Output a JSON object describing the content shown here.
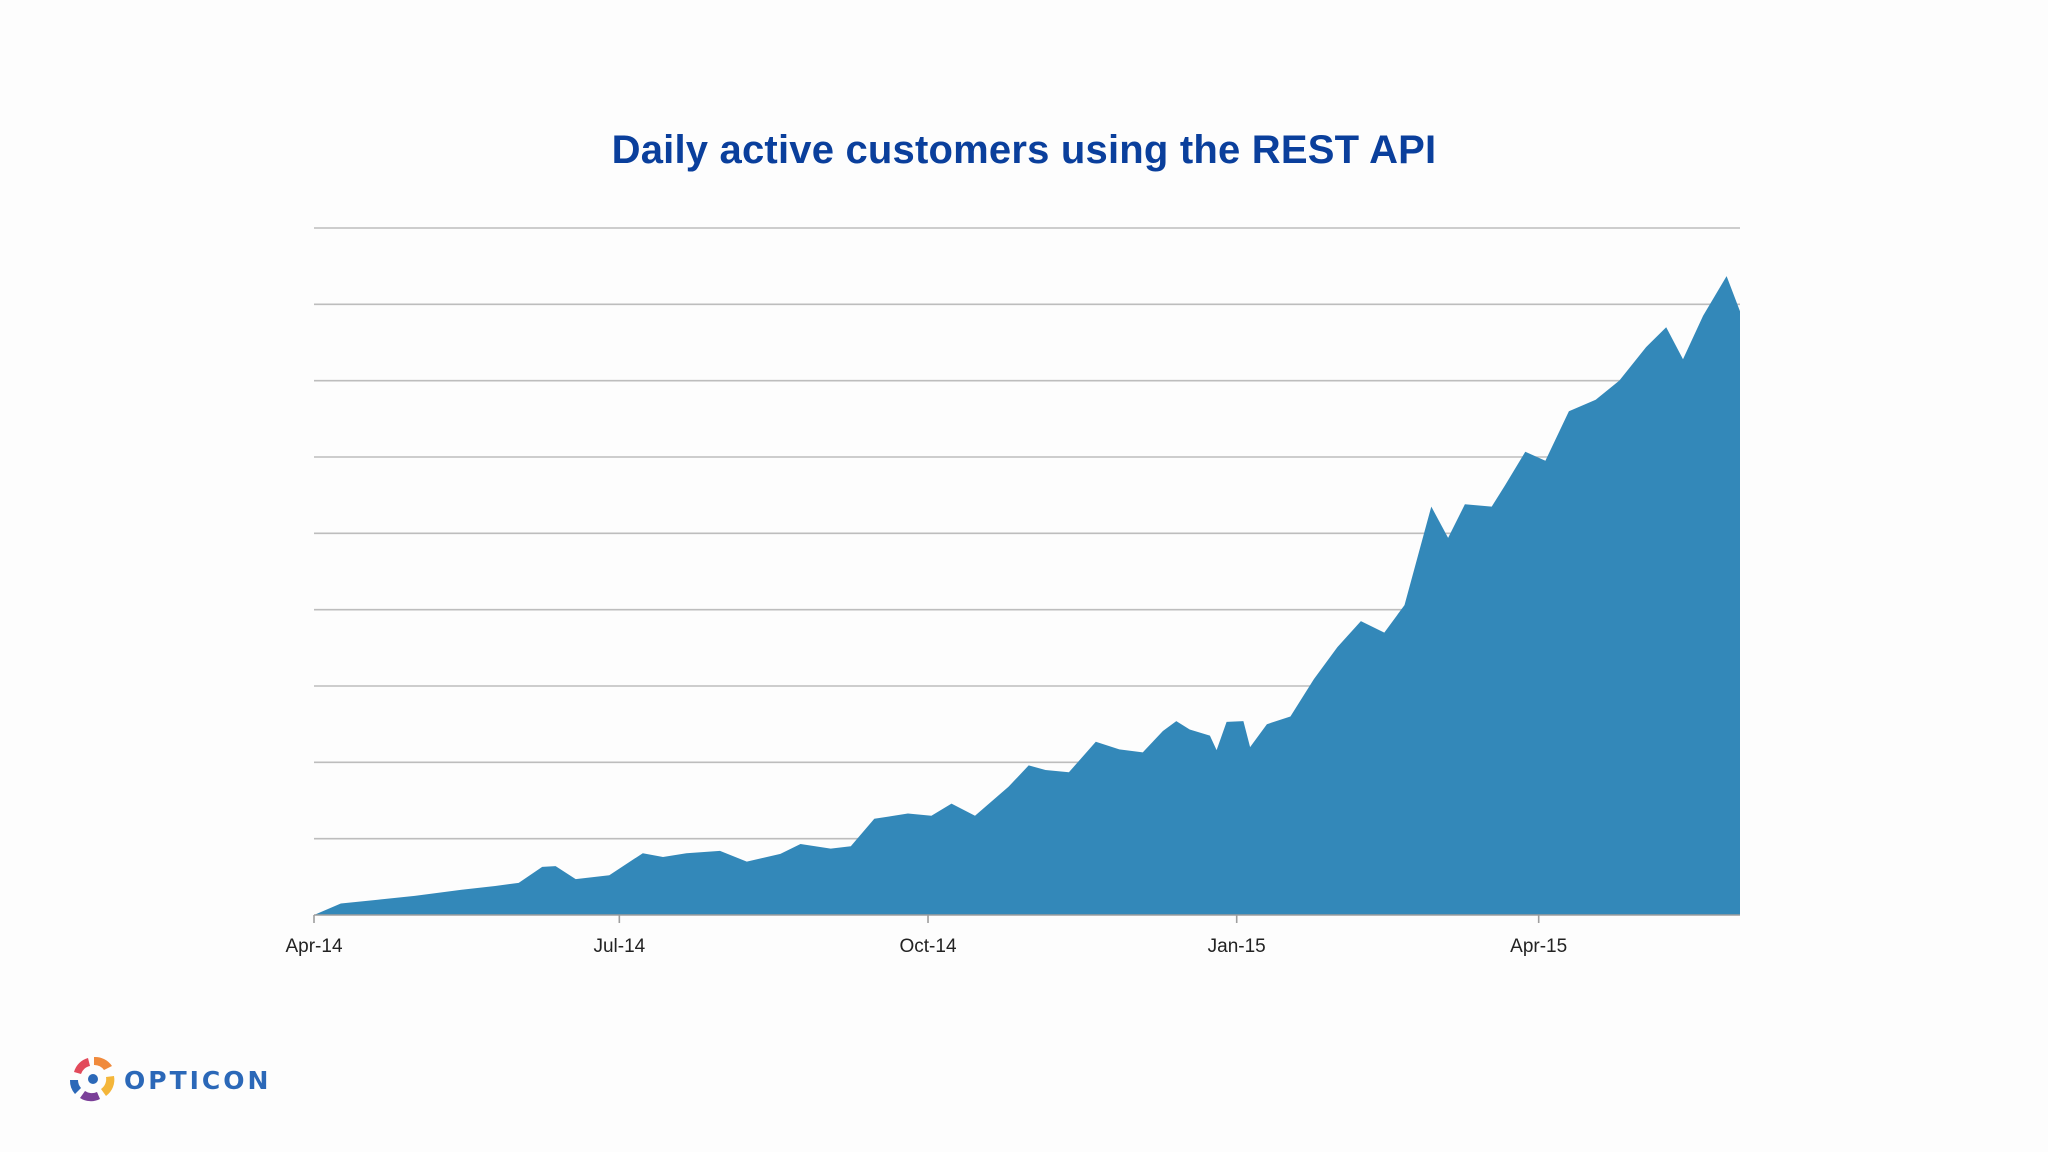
{
  "chart_data": {
    "type": "area",
    "title": "Daily active customers using the REST API",
    "xlabel": "",
    "ylabel": "",
    "x_tick_labels": [
      "Apr-14",
      "Jul-14",
      "Oct-14",
      "Jan-15",
      "Apr-15"
    ],
    "x_range": [
      "2014-04-01",
      "2015-05-31"
    ],
    "y_ticks_labeled": false,
    "gridlines": 9,
    "grid": true,
    "legend": "none",
    "color": "#3388b9",
    "series": [
      {
        "points": [
          [
            "2014-04-01",
            0.0
          ],
          [
            "2014-04-09",
            0.15
          ],
          [
            "2014-04-20",
            0.2
          ],
          [
            "2014-05-01",
            0.25
          ],
          [
            "2014-05-15",
            0.33
          ],
          [
            "2014-05-25",
            0.38
          ],
          [
            "2014-06-01",
            0.42
          ],
          [
            "2014-06-08",
            0.63
          ],
          [
            "2014-06-12",
            0.64
          ],
          [
            "2014-06-18",
            0.47
          ],
          [
            "2014-06-28",
            0.52
          ],
          [
            "2014-07-08",
            0.81
          ],
          [
            "2014-07-14",
            0.76
          ],
          [
            "2014-07-21",
            0.81
          ],
          [
            "2014-07-31",
            0.84
          ],
          [
            "2014-08-08",
            0.7
          ],
          [
            "2014-08-18",
            0.8
          ],
          [
            "2014-08-24",
            0.93
          ],
          [
            "2014-09-02",
            0.87
          ],
          [
            "2014-09-08",
            0.9
          ],
          [
            "2014-09-15",
            1.26
          ],
          [
            "2014-09-25",
            1.33
          ],
          [
            "2014-10-02",
            1.3
          ],
          [
            "2014-10-08",
            1.46
          ],
          [
            "2014-10-15",
            1.3
          ],
          [
            "2014-10-25",
            1.68
          ],
          [
            "2014-10-31",
            1.96
          ],
          [
            "2014-11-05",
            1.9
          ],
          [
            "2014-11-12",
            1.87
          ],
          [
            "2014-11-20",
            2.27
          ],
          [
            "2014-11-27",
            2.17
          ],
          [
            "2014-12-04",
            2.13
          ],
          [
            "2014-12-10",
            2.41
          ],
          [
            "2014-12-14",
            2.54
          ],
          [
            "2014-12-18",
            2.43
          ],
          [
            "2014-12-24",
            2.35
          ],
          [
            "2014-12-26",
            2.16
          ],
          [
            "2014-12-29",
            2.53
          ],
          [
            "2015-01-03",
            2.54
          ],
          [
            "2015-01-05",
            2.2
          ],
          [
            "2015-01-10",
            2.5
          ],
          [
            "2015-01-17",
            2.6
          ],
          [
            "2015-01-24",
            3.09
          ],
          [
            "2015-01-31",
            3.51
          ],
          [
            "2015-02-07",
            3.85
          ],
          [
            "2015-02-14",
            3.7
          ],
          [
            "2015-02-20",
            4.06
          ],
          [
            "2015-02-28",
            5.35
          ],
          [
            "2015-03-05",
            4.94
          ],
          [
            "2015-03-10",
            5.38
          ],
          [
            "2015-03-18",
            5.35
          ],
          [
            "2015-03-22",
            5.63
          ],
          [
            "2015-03-28",
            6.07
          ],
          [
            "2015-04-03",
            5.95
          ],
          [
            "2015-04-10",
            6.6
          ],
          [
            "2015-04-18",
            6.75
          ],
          [
            "2015-04-25",
            7.0
          ],
          [
            "2015-05-03",
            7.44
          ],
          [
            "2015-05-09",
            7.7
          ],
          [
            "2015-05-14",
            7.28
          ],
          [
            "2015-05-20",
            7.85
          ],
          [
            "2015-05-27",
            8.37
          ],
          [
            "2015-05-31",
            7.91
          ]
        ]
      }
    ]
  },
  "branding": {
    "logo_text": "OPTICON"
  }
}
